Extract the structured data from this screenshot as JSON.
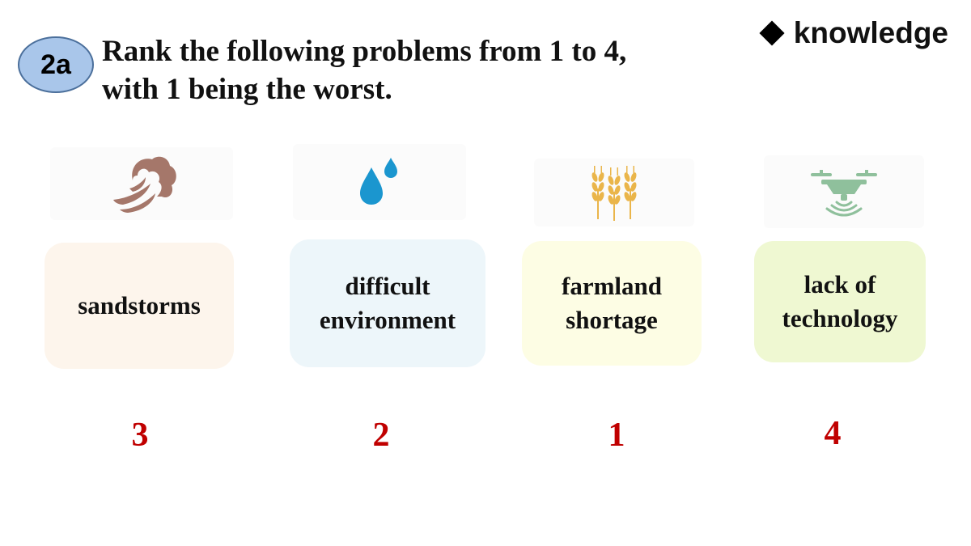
{
  "badge": {
    "label": "2a"
  },
  "instruction": {
    "line1": "Rank the following problems from 1 to 4,",
    "line2": "with 1 being the worst."
  },
  "section": {
    "icon": "diamond-icon",
    "label": "knowledge"
  },
  "problems": [
    {
      "icon": "sandstorm-icon",
      "label_line1": "sandstorms",
      "label_line2": "",
      "rank": "3",
      "card_color": "#fdf5ec",
      "icon_color": "#a5776a"
    },
    {
      "icon": "water-drops-icon",
      "label_line1": "difficult",
      "label_line2": "environment",
      "rank": "2",
      "card_color": "#edf6fa",
      "icon_color": "#1b96cf"
    },
    {
      "icon": "wheat-icon",
      "label_line1": "farmland",
      "label_line2": "shortage",
      "rank": "1",
      "card_color": "#fdfde4",
      "icon_color": "#eab54a"
    },
    {
      "icon": "drone-icon",
      "label_line1": "lack of",
      "label_line2": "technology",
      "rank": "4",
      "card_color": "#eff8d2",
      "icon_color": "#8fc09c"
    }
  ],
  "colors": {
    "rank": "#c00000",
    "badge_fill": "#a9c6ea",
    "badge_border": "#4b6f9b"
  }
}
